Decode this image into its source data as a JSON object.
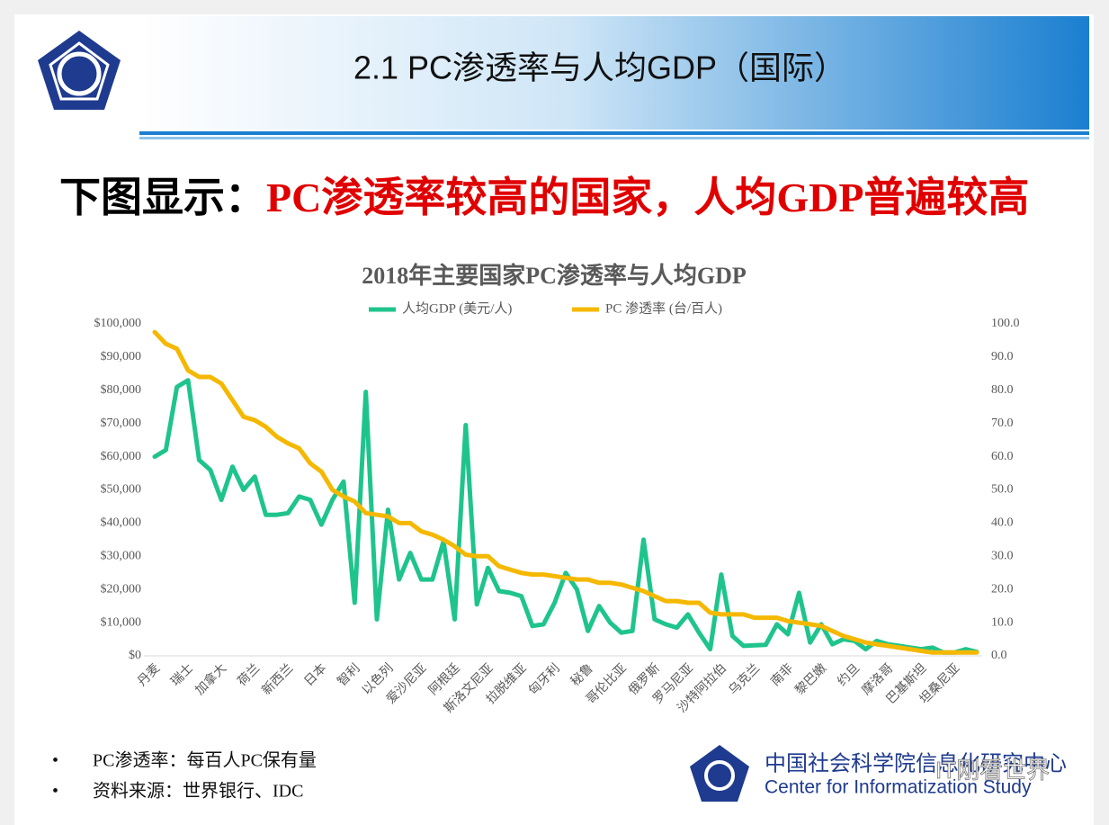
{
  "header": {
    "title": "2.1 PC渗透率与人均GDP（国际）"
  },
  "headline": {
    "prefix": "下图显示：",
    "highlight": "PC渗透率较高的国家，人均GDP普遍较高"
  },
  "chart_data": {
    "type": "line",
    "title": "2018年主要国家PC渗透率与人均GDP",
    "categories": [
      "丹麦",
      null,
      null,
      "瑞士",
      null,
      null,
      "加拿大",
      null,
      null,
      "荷兰",
      null,
      null,
      "新西兰",
      null,
      null,
      "日本",
      null,
      null,
      "智利",
      null,
      null,
      "以色列",
      null,
      null,
      "爱沙尼亚",
      null,
      null,
      "阿根廷",
      null,
      null,
      "斯洛文尼亚",
      null,
      null,
      "拉脱维亚",
      null,
      null,
      "匈牙利",
      null,
      null,
      "秘鲁",
      null,
      null,
      "哥伦比亚",
      null,
      null,
      "俄罗斯",
      null,
      null,
      "罗马尼亚",
      null,
      null,
      "沙特阿拉伯",
      null,
      null,
      "乌克兰",
      null,
      null,
      "南非",
      null,
      null,
      "黎巴嫩",
      null,
      null,
      "约旦",
      null,
      null,
      "摩洛哥",
      null,
      null,
      "巴基斯坦",
      null,
      null,
      "坦桑尼亚",
      null,
      null
    ],
    "series": [
      {
        "name": "人均GDP (美元/人)",
        "color": "#1fc48c",
        "values": [
          60000,
          62000,
          81000,
          83000,
          59000,
          56000,
          47000,
          57000,
          50000,
          54000,
          42500,
          42500,
          43000,
          48000,
          47000,
          39500,
          47000,
          52500,
          16000,
          79500,
          11000,
          44000,
          23000,
          31000,
          23000,
          23000,
          34500,
          11000,
          69500,
          15500,
          26500,
          19500,
          19000,
          18000,
          9000,
          9500,
          16000,
          25000,
          20000,
          7500,
          15000,
          10000,
          7000,
          7500,
          35000,
          11000,
          9500,
          8500,
          12500,
          7000,
          2000,
          24500,
          6000,
          3000,
          3200,
          3300,
          9500,
          6500,
          19000,
          4000,
          9500,
          3500,
          5000,
          4500,
          2000,
          4500,
          3500,
          3000,
          2500,
          2000,
          2500,
          1000,
          1000,
          2000,
          1200
        ]
      },
      {
        "name": "PC 渗透率 (台/百人)",
        "color": "#f5b800",
        "axis": "y2",
        "values": [
          97.5,
          94,
          92.5,
          86,
          84,
          84,
          82,
          77,
          72,
          71,
          69,
          66,
          64,
          62.5,
          58,
          55.5,
          50,
          48,
          46.5,
          43,
          42.5,
          42,
          40,
          40,
          37.5,
          36.5,
          35,
          33,
          30.5,
          30,
          30,
          27,
          26,
          25,
          24.5,
          24.5,
          24,
          23.5,
          23,
          23,
          22,
          22,
          21.5,
          20.5,
          19.5,
          18,
          16.5,
          16.5,
          16,
          16,
          13,
          12.5,
          12.5,
          12.5,
          11.5,
          11.5,
          11.5,
          10.5,
          10,
          9.5,
          9,
          7.5,
          6,
          5,
          4,
          3.5,
          3,
          2.5,
          2,
          1.5,
          1,
          1,
          1,
          1,
          1
        ]
      }
    ],
    "ylim": [
      0,
      100000
    ],
    "yticks": [
      {
        "value": 0,
        "label": "$0"
      },
      {
        "value": 10000,
        "label": "$10,000"
      },
      {
        "value": 20000,
        "label": "$20,000"
      },
      {
        "value": 30000,
        "label": "$30,000"
      },
      {
        "value": 40000,
        "label": "$40,000"
      },
      {
        "value": 50000,
        "label": "$50,000"
      },
      {
        "value": 60000,
        "label": "$60,000"
      },
      {
        "value": 70000,
        "label": "$70,000"
      },
      {
        "value": 80000,
        "label": "$80,000"
      },
      {
        "value": 90000,
        "label": "$90,000"
      },
      {
        "value": 100000,
        "label": "$100,000"
      }
    ],
    "y2lim": [
      0,
      100
    ],
    "y2ticks": [
      {
        "value": 0,
        "label": "0.0"
      },
      {
        "value": 10,
        "label": "10.0"
      },
      {
        "value": 20,
        "label": "20.0"
      },
      {
        "value": 30,
        "label": "30.0"
      },
      {
        "value": 40,
        "label": "40.0"
      },
      {
        "value": 50,
        "label": "50.0"
      },
      {
        "value": 60,
        "label": "60.0"
      },
      {
        "value": 70,
        "label": "70.0"
      },
      {
        "value": 80,
        "label": "80.0"
      },
      {
        "value": 90,
        "label": "90.0"
      },
      {
        "value": 100,
        "label": "100.0"
      }
    ],
    "legend": "top"
  },
  "notes": [
    "PC渗透率：每百人PC保有量",
    "资料来源：世界银行、IDC"
  ],
  "footer": {
    "org_cn": "中国社会科学院信息化研究中心",
    "org_en": "Center for Informatization Study",
    "watermark": "IT刚看世界"
  }
}
